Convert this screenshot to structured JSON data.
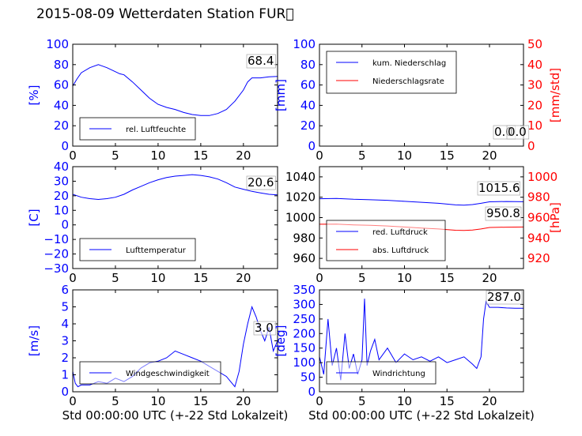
{
  "suptitle": "2015-08-09 Wetterdaten Station FUR\u0000",
  "colors": {
    "blue": "#0000ff",
    "red": "#ff0000",
    "black": "#000000"
  },
  "chart_data": [
    {
      "id": "humidity",
      "type": "line",
      "xlim": [
        0,
        24
      ],
      "ylim": [
        0,
        100
      ],
      "xticks": [
        "0",
        "5",
        "10",
        "15",
        "20"
      ],
      "yticks": [
        "0",
        "20",
        "40",
        "60",
        "80",
        "100"
      ],
      "ylabel": "[%]",
      "legend": [
        "rel. Luftfeuchte"
      ],
      "legend_placement": "lower-left",
      "series": [
        {
          "name": "rel. Luftfeuchte",
          "color": "#0000ff",
          "x": [
            0,
            0.5,
            1,
            2,
            3,
            4,
            5,
            5.5,
            6,
            7,
            8,
            9,
            10,
            11,
            12,
            13,
            14,
            15,
            16,
            17,
            18,
            19,
            20,
            20.5,
            21,
            22,
            23,
            24
          ],
          "y": [
            59,
            66,
            72,
            77,
            80,
            77,
            73,
            71,
            70,
            63,
            55,
            47,
            41,
            38,
            36,
            33,
            31,
            30,
            30,
            32,
            36,
            44,
            55,
            63,
            67,
            67,
            68,
            68.4
          ]
        }
      ],
      "annotations": [
        "68.4"
      ]
    },
    {
      "id": "precip",
      "type": "line",
      "xlim": [
        0,
        24
      ],
      "ylim": [
        0,
        100
      ],
      "y2lim": [
        0,
        50
      ],
      "xticks": [
        "0",
        "5",
        "10",
        "15",
        "20"
      ],
      "yticks": [
        "0",
        "20",
        "40",
        "60",
        "80",
        "100"
      ],
      "y2ticks": [
        "0",
        "10",
        "20",
        "30",
        "40",
        "50"
      ],
      "ylabel": "[mm]",
      "y2label": "[mm/std]",
      "legend": [
        "kum. Niederschlag",
        "Niederschlagsrate"
      ],
      "legend_placement": "upper-left",
      "series": [
        {
          "name": "kum. Niederschlag",
          "color": "#0000ff",
          "axis": "left",
          "x": [
            0,
            24
          ],
          "y": [
            0,
            0
          ]
        },
        {
          "name": "Niederschlagsrate",
          "color": "#ff0000",
          "axis": "right",
          "x": [
            0,
            24
          ],
          "y": [
            0,
            0
          ]
        }
      ],
      "annotations": [
        "0.0",
        "0.0"
      ]
    },
    {
      "id": "temperature",
      "type": "line",
      "xlim": [
        0,
        24
      ],
      "ylim": [
        -30,
        40
      ],
      "xticks": [
        "0",
        "5",
        "10",
        "15",
        "20"
      ],
      "yticks": [
        "−30",
        "−20",
        "−10",
        "0",
        "10",
        "20",
        "30",
        "40"
      ],
      "ylabel": "[C]",
      "legend": [
        "Lufttemperatur"
      ],
      "legend_placement": "lower-left",
      "series": [
        {
          "name": "Lufttemperatur",
          "color": "#0000ff",
          "x": [
            0,
            1,
            2,
            3,
            4,
            5,
            6,
            7,
            8,
            9,
            10,
            11,
            12,
            13,
            14,
            15,
            16,
            17,
            18,
            19,
            20,
            21,
            22,
            23,
            24
          ],
          "y": [
            21,
            19,
            18,
            17.5,
            18,
            19,
            21,
            24,
            26.5,
            29,
            31,
            32.5,
            33.5,
            34,
            34.5,
            34,
            33,
            31.5,
            29,
            26,
            24.5,
            23,
            22,
            21,
            20.6
          ]
        }
      ],
      "annotations": [
        "20.6"
      ]
    },
    {
      "id": "pressure",
      "type": "line",
      "xlim": [
        0,
        24
      ],
      "ylim": [
        950,
        1050
      ],
      "y2lim": [
        910,
        1010
      ],
      "xticks": [
        "0",
        "5",
        "10",
        "15",
        "20"
      ],
      "yticks": [
        "960",
        "980",
        "1000",
        "1020",
        "1040"
      ],
      "y2ticks": [
        "920",
        "940",
        "960",
        "980",
        "1000"
      ],
      "y2label": "[hPa]",
      "legend": [
        "red. Luftdruck",
        "abs. Luftdruck"
      ],
      "legend_placement": "lower-left",
      "series": [
        {
          "name": "red. Luftdruck",
          "color": "#0000ff",
          "axis": "left",
          "x": [
            0,
            2,
            4,
            6,
            8,
            10,
            12,
            14,
            16,
            17,
            18,
            19,
            20,
            22,
            24
          ],
          "y": [
            1018.5,
            1018.8,
            1018,
            1017.5,
            1017,
            1016,
            1015,
            1014,
            1012.5,
            1012.2,
            1012.8,
            1014,
            1015.5,
            1015.8,
            1015.6
          ]
        },
        {
          "name": "abs. Luftdruck",
          "color": "#ff0000",
          "axis": "right",
          "x": [
            0,
            2,
            4,
            6,
            8,
            10,
            12,
            14,
            16,
            17,
            18,
            19,
            20,
            22,
            24
          ],
          "y": [
            953.5,
            953.6,
            952.9,
            952.4,
            951.8,
            950.8,
            949.8,
            948.8,
            947.6,
            947.4,
            947.8,
            948.8,
            950.3,
            950.6,
            950.8
          ]
        }
      ],
      "annotations": [
        "1015.6",
        "950.8"
      ]
    },
    {
      "id": "windspeed",
      "type": "line",
      "xlim": [
        0,
        24
      ],
      "ylim": [
        0,
        6
      ],
      "xticks": [
        "0",
        "5",
        "10",
        "15",
        "20"
      ],
      "yticks": [
        "0",
        "1",
        "2",
        "3",
        "4",
        "5",
        "6"
      ],
      "ylabel": "[m/s]",
      "xlabel": "Std 00:00:00 UTC (+-22 Std Lokalzeit)",
      "legend": [
        "Windgeschwindigkeit"
      ],
      "legend_placement": "lower-left",
      "series": [
        {
          "name": "Windgeschwindigkeit",
          "color": "#0000ff",
          "x": [
            0,
            0.3,
            0.6,
            1,
            2,
            3,
            4,
            5,
            6,
            7,
            8,
            9,
            10,
            11,
            12,
            13,
            14,
            15,
            16,
            17,
            18,
            18.5,
            19,
            19.5,
            20,
            20.5,
            21,
            21.5,
            22,
            22.5,
            23,
            23.5,
            24
          ],
          "y": [
            1.2,
            0.5,
            0.3,
            0.4,
            0.4,
            0.6,
            0.5,
            0.8,
            0.6,
            0.9,
            1.4,
            1.7,
            1.8,
            2.0,
            2.4,
            2.2,
            2.0,
            1.8,
            1.5,
            1.2,
            0.9,
            0.6,
            0.3,
            1.2,
            2.8,
            4.0,
            5.0,
            4.4,
            3.6,
            3.0,
            3.8,
            2.4,
            3.0
          ]
        }
      ],
      "annotations": [
        "3.0"
      ]
    },
    {
      "id": "winddir",
      "type": "line",
      "xlim": [
        0,
        24
      ],
      "ylim": [
        0,
        350
      ],
      "xticks": [
        "0",
        "5",
        "10",
        "15",
        "20"
      ],
      "yticks": [
        "0",
        "50",
        "100",
        "150",
        "200",
        "250",
        "300",
        "350"
      ],
      "ylabel": "[deg]",
      "xlabel": "Std 00:00:00 UTC (+-22 Std Lokalzeit)",
      "legend": [
        "Windrichtung"
      ],
      "legend_placement": "lower-left",
      "series": [
        {
          "name": "Windrichtung",
          "color": "#0000ff",
          "x": [
            0,
            0.5,
            1,
            1.5,
            2,
            2.5,
            3,
            3.5,
            4,
            4.5,
            5,
            5.3,
            5.6,
            6,
            6.5,
            7,
            8,
            9,
            10,
            11,
            12,
            13,
            14,
            15,
            16,
            17,
            18,
            18.5,
            19,
            19.3,
            19.6,
            20,
            21,
            22,
            23,
            24
          ],
          "y": [
            120,
            60,
            250,
            90,
            150,
            40,
            200,
            80,
            130,
            60,
            110,
            320,
            90,
            140,
            180,
            110,
            150,
            100,
            130,
            110,
            120,
            105,
            120,
            100,
            110,
            120,
            95,
            80,
            120,
            250,
            310,
            290,
            290,
            288,
            287,
            287
          ]
        }
      ],
      "annotations": [
        "287.0"
      ]
    }
  ]
}
